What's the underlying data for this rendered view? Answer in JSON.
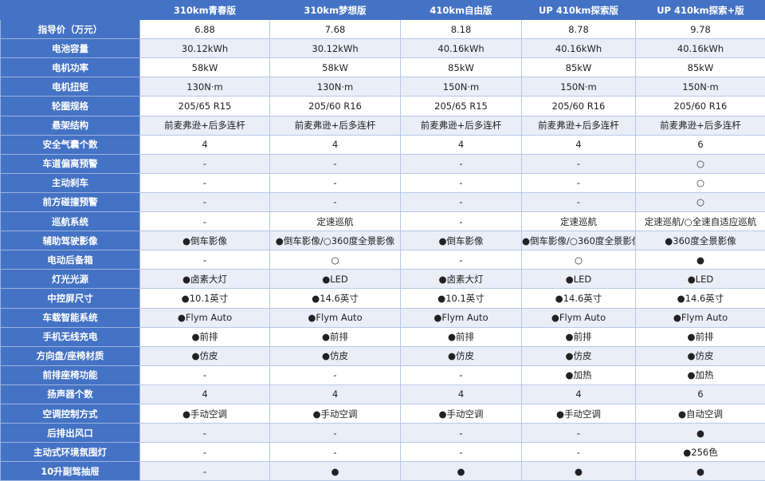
{
  "colors": {
    "header_bg": "#4472c4",
    "row_alt": "#e9eef8",
    "grid": "#b9c8e8"
  },
  "header": [
    "",
    "310km青春版",
    "310km梦想版",
    "410km自由版",
    "UP 410km探索版",
    "UP 410km探索+版"
  ],
  "rows": [
    [
      "指导价（万元）",
      "6.88",
      "7.68",
      "8.18",
      "8.78",
      "9.78"
    ],
    [
      "电池容量",
      "30.12kWh",
      "30.12kWh",
      "40.16kWh",
      "40.16kWh",
      "40.16kWh"
    ],
    [
      "电机功率",
      "58kW",
      "58kW",
      "85kW",
      "85kW",
      "85kW"
    ],
    [
      "电机扭矩",
      "130N·m",
      "130N·m",
      "150N·m",
      "150N·m",
      "150N·m"
    ],
    [
      "轮圈规格",
      "205/65 R15",
      "205/60 R16",
      "205/65 R15",
      "205/60 R16",
      "205/60 R16"
    ],
    [
      "悬架结构",
      "前麦弗逊+后多连杆",
      "前麦弗逊+后多连杆",
      "前麦弗逊+后多连杆",
      "前麦弗逊+后多连杆",
      "前麦弗逊+后多连杆"
    ],
    [
      "安全气囊个数",
      "4",
      "4",
      "4",
      "4",
      "6"
    ],
    [
      "车道偏离预警",
      "-",
      "-",
      "-",
      "-",
      "○"
    ],
    [
      "主动刹车",
      "-",
      "-",
      "-",
      "-",
      "○"
    ],
    [
      "前方碰撞预警",
      "-",
      "-",
      "-",
      "-",
      "○"
    ],
    [
      "巡航系统",
      "-",
      "定速巡航",
      "-",
      "定速巡航",
      "定速巡航/○全速自适应巡航"
    ],
    [
      "辅助驾驶影像",
      "●倒车影像",
      "●倒车影像/○360度全景影像",
      "●倒车影像",
      "●倒车影像/○360度全景影像",
      "●360度全景影像"
    ],
    [
      "电动后备箱",
      "-",
      "○",
      "-",
      "○",
      "●"
    ],
    [
      "灯光光源",
      "●卤素大灯",
      "●LED",
      "●卤素大灯",
      "●LED",
      "●LED"
    ],
    [
      "中控屏尺寸",
      "●10.1英寸",
      "●14.6英寸",
      "●10.1英寸",
      "●14.6英寸",
      "●14.6英寸"
    ],
    [
      "车载智能系统",
      "●Flym Auto",
      "●Flym Auto",
      "●Flym Auto",
      "●Flym Auto",
      "●Flym Auto"
    ],
    [
      "手机无线充电",
      "●前排",
      "●前排",
      "●前排",
      "●前排",
      "●前排"
    ],
    [
      "方向盘/座椅材质",
      "●仿皮",
      "●仿皮",
      "●仿皮",
      "●仿皮",
      "●仿皮"
    ],
    [
      "前排座椅功能",
      "-",
      "-",
      "-",
      "●加热",
      "●加热"
    ],
    [
      "扬声器个数",
      "4",
      "4",
      "4",
      "4",
      "6"
    ],
    [
      "空调控制方式",
      "●手动空调",
      "●手动空调",
      "●手动空调",
      "●手动空调",
      "●自动空调"
    ],
    [
      "后排出风口",
      "-",
      "-",
      "-",
      "-",
      "●"
    ],
    [
      "主动式环境氛围灯",
      "-",
      "-",
      "-",
      "-",
      "●256色"
    ],
    [
      "10升副驾抽屉",
      "-",
      "●",
      "●",
      "●",
      "●"
    ]
  ]
}
